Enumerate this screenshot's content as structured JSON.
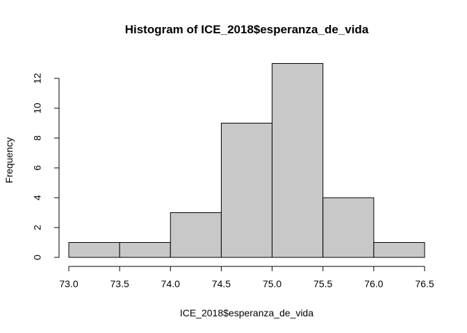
{
  "chart_data": {
    "type": "bar",
    "title": "Histogram of ICE_2018$esperanza_de_vida",
    "xlabel": "ICE_2018$esperanza_de_vida",
    "ylabel": "Frequency",
    "bins": [
      {
        "start": 73.0,
        "end": 73.5,
        "count": 1
      },
      {
        "start": 73.5,
        "end": 74.0,
        "count": 1
      },
      {
        "start": 74.0,
        "end": 74.5,
        "count": 3
      },
      {
        "start": 74.5,
        "end": 75.0,
        "count": 9
      },
      {
        "start": 75.0,
        "end": 75.5,
        "count": 13
      },
      {
        "start": 75.5,
        "end": 76.0,
        "count": 4
      },
      {
        "start": 76.0,
        "end": 76.5,
        "count": 1
      }
    ],
    "xlim": [
      73.0,
      76.5
    ],
    "ylim": [
      0,
      13
    ],
    "x_ticks": [
      "73.0",
      "73.5",
      "74.0",
      "74.5",
      "75.0",
      "75.5",
      "76.0",
      "76.5"
    ],
    "y_ticks": [
      "0",
      "2",
      "4",
      "6",
      "8",
      "10",
      "12"
    ],
    "bar_fill": "#c8c8c8",
    "bar_stroke": "#000000",
    "grid": false,
    "legend": "none"
  }
}
